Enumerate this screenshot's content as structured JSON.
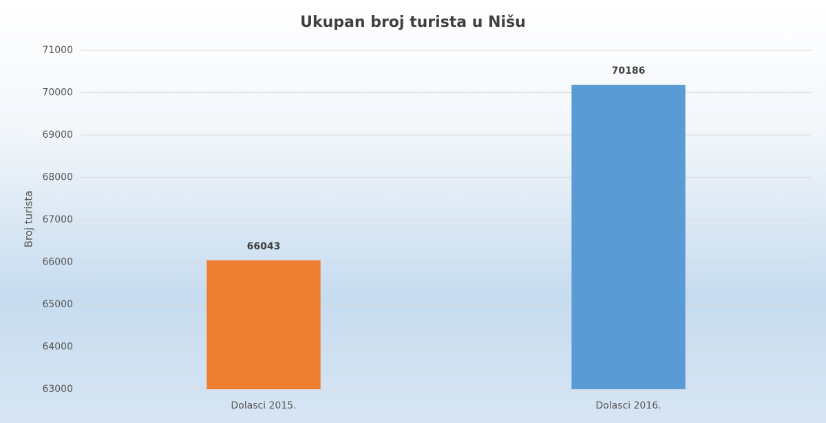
{
  "chart_data": {
    "type": "bar",
    "title": "Ukupan broj turista u Nišu",
    "y_label": "Broj turista",
    "categories": [
      "Dolasci 2015.",
      "Dolasci 2016."
    ],
    "values": [
      66043,
      70186
    ],
    "colors": [
      "#ed7d31",
      "#5b9bd5"
    ],
    "ylim": [
      63000,
      71000
    ],
    "yticks": [
      63000,
      64000,
      65000,
      66000,
      67000,
      68000,
      69000,
      70000,
      71000
    ],
    "grid": true
  }
}
